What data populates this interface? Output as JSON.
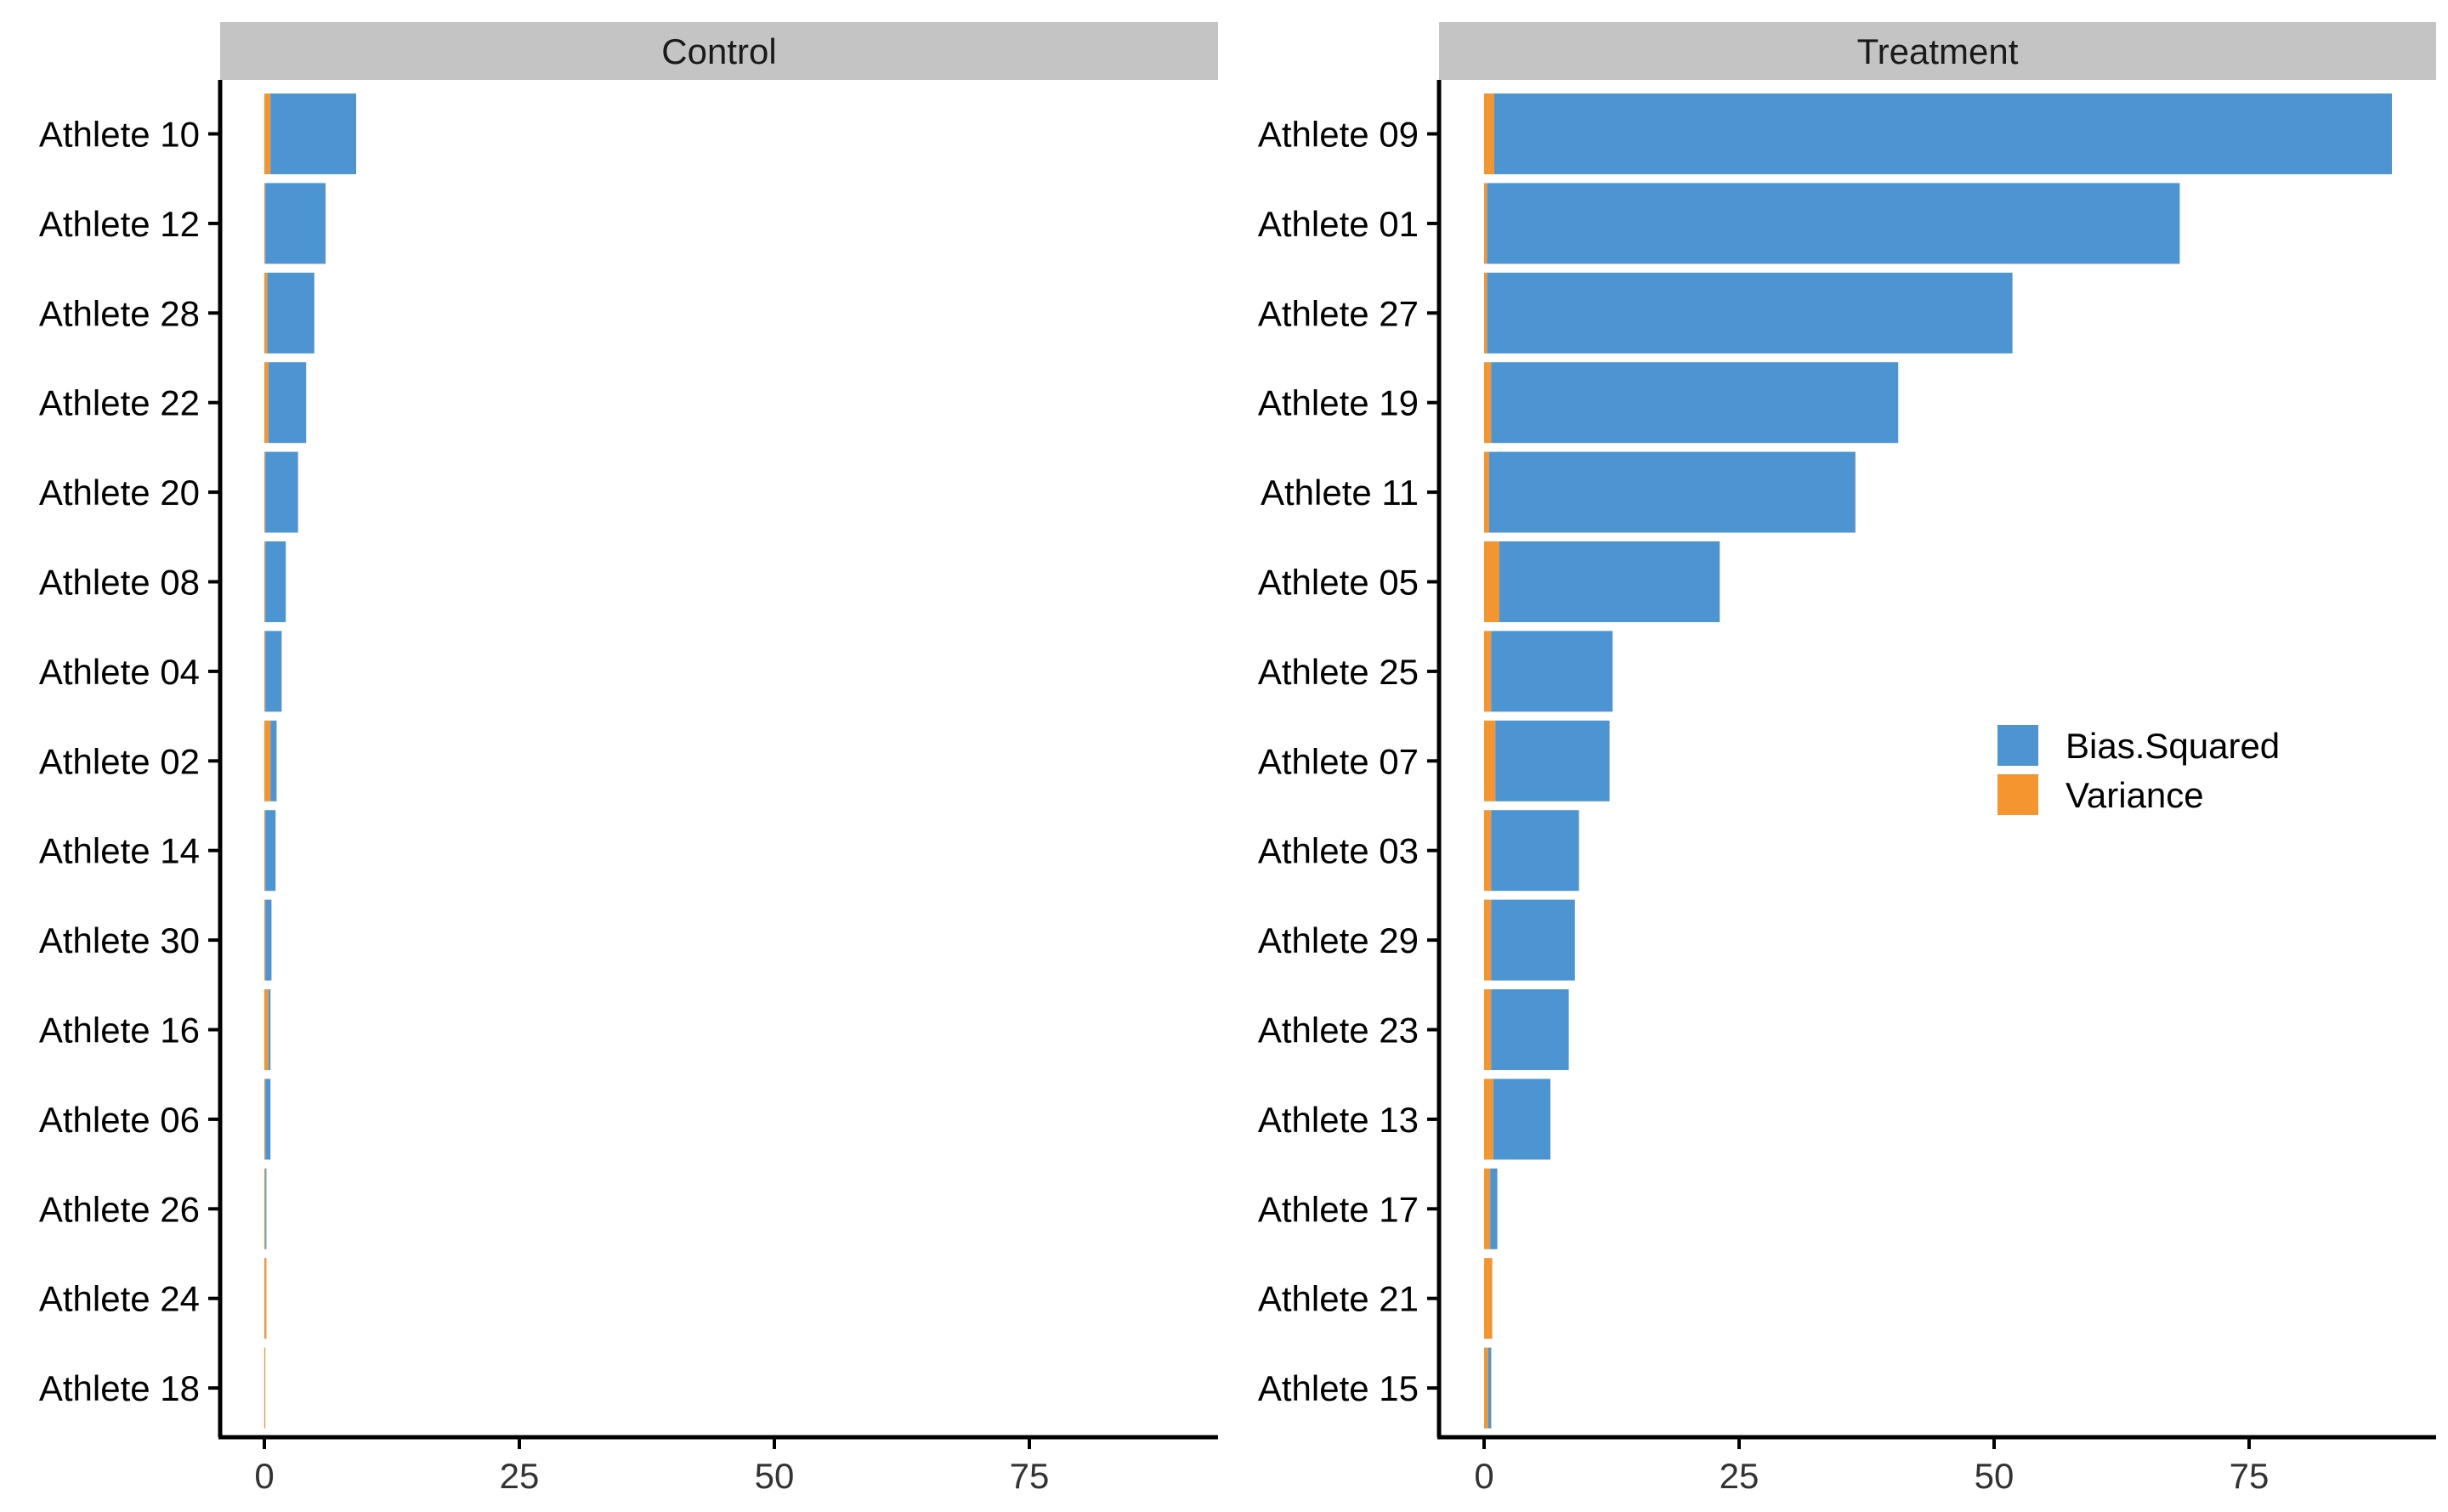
{
  "colors": {
    "bias_squared": "#4d94d3",
    "variance": "#f5952f",
    "strip": "#c4c4c4",
    "axis": "#000000"
  },
  "chart_data": {
    "type": "bar",
    "orientation": "horizontal",
    "stacked": true,
    "xlim": [
      0,
      90
    ],
    "xticks": [
      0,
      25,
      50,
      75
    ],
    "grid": false,
    "legend_position": "inside-right",
    "legend": [
      {
        "key": "bias_squared",
        "label": "Bias.Squared"
      },
      {
        "key": "variance",
        "label": "Variance"
      }
    ],
    "panels": [
      {
        "title": "Control",
        "categories": [
          "Athlete 10",
          "Athlete 12",
          "Athlete 28",
          "Athlete 22",
          "Athlete 20",
          "Athlete 08",
          "Athlete 04",
          "Athlete 02",
          "Athlete 14",
          "Athlete 30",
          "Athlete 16",
          "Athlete 06",
          "Athlete 26",
          "Athlete 24",
          "Athlete 18"
        ],
        "series": [
          {
            "name": "Variance",
            "key": "variance",
            "values": [
              0.6,
              0.1,
              0.3,
              0.4,
              0.1,
              0.1,
              0.1,
              0.6,
              0.1,
              0.1,
              0.4,
              0.1,
              0.1,
              0.2,
              0.1
            ]
          },
          {
            "name": "Bias.Squared",
            "key": "bias_squared",
            "values": [
              8.4,
              5.9,
              4.6,
              3.7,
              3.2,
              2.0,
              1.6,
              0.6,
              1.0,
              0.6,
              0.2,
              0.5,
              0.1,
              0.0,
              0.0
            ]
          }
        ]
      },
      {
        "title": "Treatment",
        "categories": [
          "Athlete 09",
          "Athlete 01",
          "Athlete 27",
          "Athlete 19",
          "Athlete 11",
          "Athlete 05",
          "Athlete 25",
          "Athlete 07",
          "Athlete 03",
          "Athlete 29",
          "Athlete 23",
          "Athlete 13",
          "Athlete 17",
          "Athlete 21",
          "Athlete 15"
        ],
        "series": [
          {
            "name": "Variance",
            "key": "variance",
            "values": [
              1.0,
              0.3,
              0.3,
              0.7,
              0.5,
              1.5,
              0.7,
              1.1,
              0.7,
              0.7,
              0.7,
              0.9,
              0.6,
              0.8,
              0.4
            ]
          },
          {
            "name": "Bias.Squared",
            "key": "bias_squared",
            "values": [
              88.0,
              67.9,
              51.5,
              39.9,
              35.9,
              21.6,
              11.9,
              11.2,
              8.6,
              8.2,
              7.6,
              5.6,
              0.7,
              0.0,
              0.3
            ]
          }
        ]
      }
    ]
  }
}
